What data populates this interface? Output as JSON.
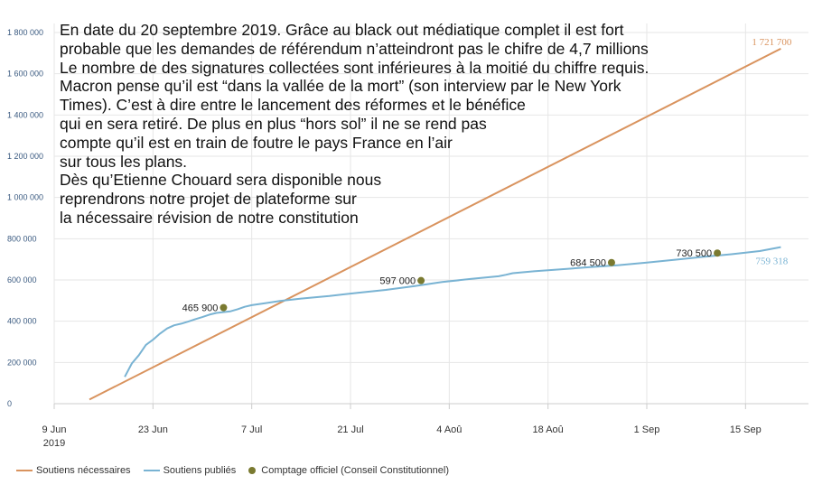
{
  "annotation_lines": [
    "En date du 20 septembre 2019. Grâce au black out médiatique complet il est fort",
    "probable que les demandes de référendum n’atteindront pas le chifre de 4,7 millions",
    "Le nombre de des signatures collectées sont inférieures à la moitié du chiffre requis.",
    "Macron pense qu’il est “dans la vallée de la mort” (son interview par le New York",
    "Times). C’est à dire entre le lancement des réformes et le bénéfice",
    "qui en sera retiré. De plus en plus “hors sol” il ne se rend pas",
    "compte qu’il est en train de foutre le pays France en l’air",
    "sur tous les plans.",
    "Dès qu’Etienne Chouard sera disponible nous",
    "reprendrons notre projet de plateforme sur",
    "la nécessaire révision de notre constitution"
  ],
  "chart_data": {
    "type": "line",
    "ylim": [
      0,
      1800000
    ],
    "xlim": [
      "2019-06-09",
      "2019-09-22"
    ],
    "yticks": [
      0,
      200000,
      400000,
      600000,
      800000,
      1000000,
      1200000,
      1400000,
      1600000,
      1800000
    ],
    "ytick_labels": [
      "0",
      "200 000",
      "400 000",
      "600 000",
      "800 000",
      "1 000 000",
      "1 200 000",
      "1 400 000",
      "1 600 000",
      "1 800 000"
    ],
    "xticks": [
      {
        "date": "2019-06-09",
        "label": "9 Jun",
        "sublabel": "2019"
      },
      {
        "date": "2019-06-23",
        "label": "23 Jun",
        "sublabel": ""
      },
      {
        "date": "2019-07-07",
        "label": "7 Jul",
        "sublabel": ""
      },
      {
        "date": "2019-07-21",
        "label": "21 Jul",
        "sublabel": ""
      },
      {
        "date": "2019-08-04",
        "label": "4 Aoû",
        "sublabel": ""
      },
      {
        "date": "2019-08-18",
        "label": "18 Aoû",
        "sublabel": ""
      },
      {
        "date": "2019-09-01",
        "label": "1 Sep",
        "sublabel": ""
      },
      {
        "date": "2019-09-15",
        "label": "15 Sep",
        "sublabel": ""
      }
    ],
    "grid": true,
    "legend_position": "bottom-left",
    "series": [
      {
        "name": "Soutiens nécessaires",
        "kind": "line",
        "color": "#d9935e",
        "end_label": "1 721 700",
        "points": [
          [
            "2019-06-14",
            20000
          ],
          [
            "2019-09-20",
            1721700
          ]
        ]
      },
      {
        "name": "Soutiens publiés",
        "kind": "line",
        "color": "#79b3d3",
        "end_label": "759 318",
        "points": [
          [
            "2019-06-19",
            130000
          ],
          [
            "2019-06-20",
            195000
          ],
          [
            "2019-06-21",
            235000
          ],
          [
            "2019-06-22",
            285000
          ],
          [
            "2019-06-23",
            310000
          ],
          [
            "2019-06-24",
            340000
          ],
          [
            "2019-06-25",
            365000
          ],
          [
            "2019-06-26",
            380000
          ],
          [
            "2019-06-27",
            388000
          ],
          [
            "2019-06-28",
            398000
          ],
          [
            "2019-06-29",
            410000
          ],
          [
            "2019-06-30",
            420000
          ],
          [
            "2019-07-01",
            432000
          ],
          [
            "2019-07-02",
            440000
          ],
          [
            "2019-07-04",
            448000
          ],
          [
            "2019-07-05",
            458000
          ],
          [
            "2019-07-06",
            470000
          ],
          [
            "2019-07-07",
            478000
          ],
          [
            "2019-07-09",
            488000
          ],
          [
            "2019-07-11",
            498000
          ],
          [
            "2019-07-14",
            510000
          ],
          [
            "2019-07-18",
            522000
          ],
          [
            "2019-07-22",
            538000
          ],
          [
            "2019-07-26",
            552000
          ],
          [
            "2019-07-30",
            570000
          ],
          [
            "2019-08-03",
            590000
          ],
          [
            "2019-08-07",
            605000
          ],
          [
            "2019-08-11",
            618000
          ],
          [
            "2019-08-12",
            625000
          ],
          [
            "2019-08-13",
            633000
          ],
          [
            "2019-08-16",
            642000
          ],
          [
            "2019-08-20",
            652000
          ],
          [
            "2019-08-24",
            662000
          ],
          [
            "2019-08-28",
            672000
          ],
          [
            "2019-09-01",
            684000
          ],
          [
            "2019-09-05",
            698000
          ],
          [
            "2019-09-09",
            712000
          ],
          [
            "2019-09-13",
            725000
          ],
          [
            "2019-09-17",
            740000
          ],
          [
            "2019-09-20",
            759318
          ]
        ]
      },
      {
        "name": "Comptage officiel (Conseil Constitutionnel)",
        "kind": "points",
        "color": "#7a7a30",
        "points": [
          {
            "x": "2019-07-03",
            "y": 465900,
            "label": "465 900"
          },
          {
            "x": "2019-07-31",
            "y": 597000,
            "label": "597 000"
          },
          {
            "x": "2019-08-27",
            "y": 684500,
            "label": "684 500"
          },
          {
            "x": "2019-09-11",
            "y": 730500,
            "label": "730 500"
          }
        ]
      }
    ]
  }
}
